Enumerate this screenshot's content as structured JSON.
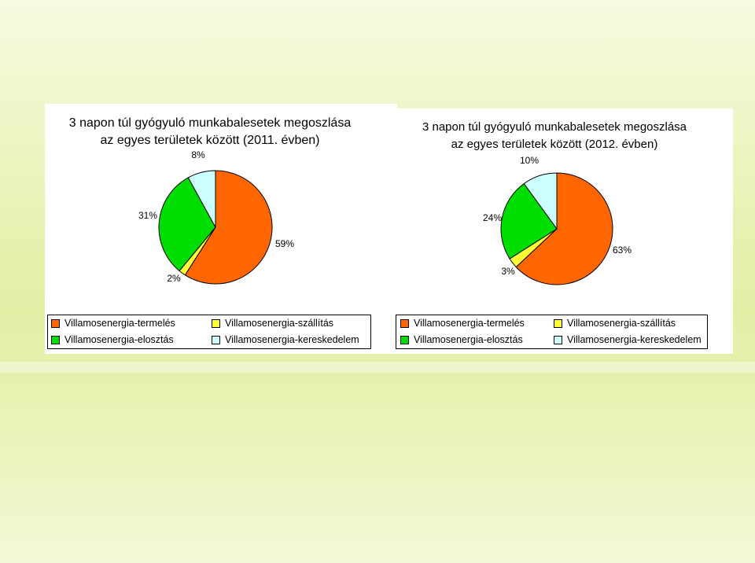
{
  "chart_data": [
    {
      "type": "pie",
      "title_lines": [
        "3 napon túl gyógyuló munkabalesetek megoszlása",
        "az egyes területek között (2011. évben)"
      ],
      "categories": [
        "Villamosenergia-termelés",
        "Villamosenergia-szállítás",
        "Villamosenergia-elosztás",
        "Villamosenergia-kereskedelem"
      ],
      "values": [
        59,
        2,
        31,
        8
      ],
      "labels": [
        "59%",
        "2%",
        "31%",
        "8%"
      ],
      "colors": [
        "#ff6600",
        "#ffff33",
        "#00dd00",
        "#ccffff"
      ],
      "legend_position": "bottom"
    },
    {
      "type": "pie",
      "title_lines": [
        "3 napon túl gyógyuló munkabalesetek megoszlása",
        "az egyes területek között (2012. évben)"
      ],
      "categories": [
        "Villamosenergia-termelés",
        "Villamosenergia-szállítás",
        "Villamosenergia-elosztás",
        "Villamosenergia-kereskedelem"
      ],
      "values": [
        63,
        3,
        24,
        10
      ],
      "labels": [
        "63%",
        "3%",
        "24%",
        "10%"
      ],
      "colors": [
        "#ff6600",
        "#ffff33",
        "#00dd00",
        "#ccffff"
      ],
      "legend_position": "bottom"
    }
  ]
}
